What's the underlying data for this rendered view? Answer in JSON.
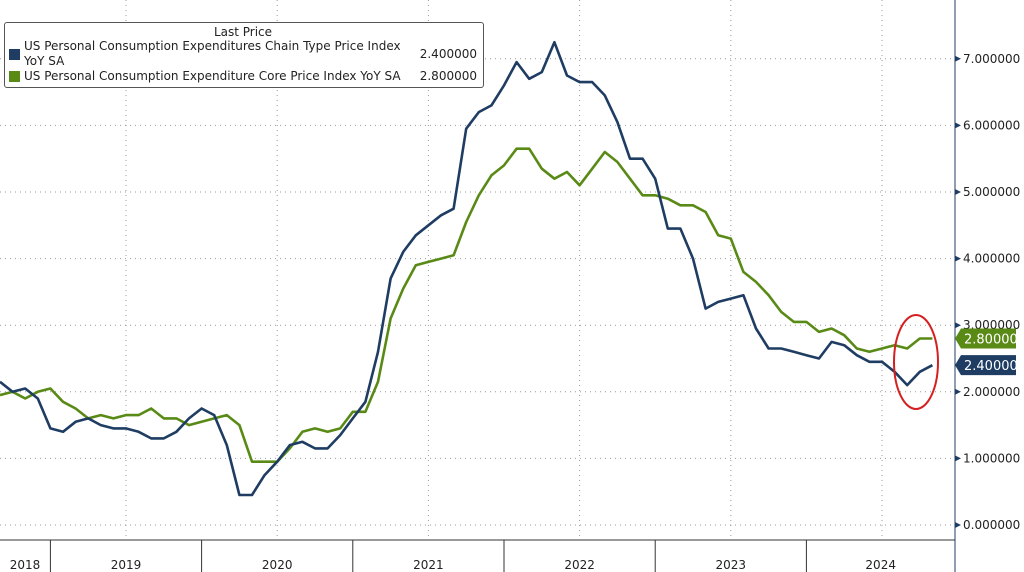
{
  "chart_data": {
    "type": "line",
    "title": "",
    "legend_title": "Last Price",
    "legend_placement": "top-left",
    "x_start": "2018-09",
    "x_end": "2024-11",
    "x_frequency": "monthly",
    "x_tick_labels": [
      "2018",
      "2019",
      "2020",
      "2021",
      "2022",
      "2023",
      "2024"
    ],
    "y_tick_labels": [
      "0.000000",
      "1.000000",
      "2.000000",
      "3.000000",
      "4.000000",
      "5.000000",
      "6.000000",
      "7.000000"
    ],
    "ylim": [
      -0.1,
      7.9
    ],
    "y_axis_side": "right",
    "grid": true,
    "series": [
      {
        "name": "US Personal Consumption Expenditures Chain Type Price Index YoY SA",
        "last_label": "2.400000",
        "color": "#1f3d63",
        "values": [
          2.15,
          2.0,
          2.05,
          1.9,
          1.45,
          1.4,
          1.55,
          1.6,
          1.5,
          1.45,
          1.45,
          1.4,
          1.3,
          1.3,
          1.4,
          1.6,
          1.75,
          1.65,
          1.2,
          0.45,
          0.45,
          0.75,
          0.95,
          1.2,
          1.25,
          1.15,
          1.15,
          1.35,
          1.6,
          1.85,
          2.6,
          3.7,
          4.1,
          4.35,
          4.5,
          4.65,
          4.75,
          5.95,
          6.2,
          6.3,
          6.6,
          6.95,
          6.7,
          6.8,
          7.25,
          6.75,
          6.65,
          6.65,
          6.45,
          6.05,
          5.5,
          5.5,
          5.2,
          4.45,
          4.45,
          4.0,
          3.25,
          3.35,
          3.4,
          3.45,
          2.95,
          2.65,
          2.65,
          2.6,
          2.55,
          2.5,
          2.75,
          2.7,
          2.55,
          2.45,
          2.45,
          2.3,
          2.1,
          2.3,
          2.4
        ]
      },
      {
        "name": "US Personal Consumption Expenditure Core Price Index YoY SA",
        "last_label": "2.800000",
        "color": "#5a8a16",
        "values": [
          1.95,
          2.0,
          1.9,
          2.0,
          2.05,
          1.85,
          1.75,
          1.6,
          1.65,
          1.6,
          1.65,
          1.65,
          1.75,
          1.6,
          1.6,
          1.5,
          1.55,
          1.6,
          1.65,
          1.5,
          0.95,
          0.95,
          0.95,
          1.15,
          1.4,
          1.45,
          1.4,
          1.45,
          1.7,
          1.7,
          2.15,
          3.1,
          3.55,
          3.9,
          3.95,
          4.0,
          4.05,
          4.55,
          4.95,
          5.25,
          5.4,
          5.65,
          5.65,
          5.35,
          5.2,
          5.3,
          5.1,
          5.35,
          5.6,
          5.45,
          5.2,
          4.95,
          4.95,
          4.9,
          4.8,
          4.8,
          4.7,
          4.35,
          4.3,
          3.8,
          3.65,
          3.45,
          3.2,
          3.05,
          3.05,
          2.9,
          2.95,
          2.85,
          2.65,
          2.6,
          2.65,
          2.7,
          2.65,
          2.8,
          2.8
        ]
      }
    ],
    "annotation": {
      "type": "ellipse",
      "color": "#d42020",
      "around": "latest values"
    }
  }
}
